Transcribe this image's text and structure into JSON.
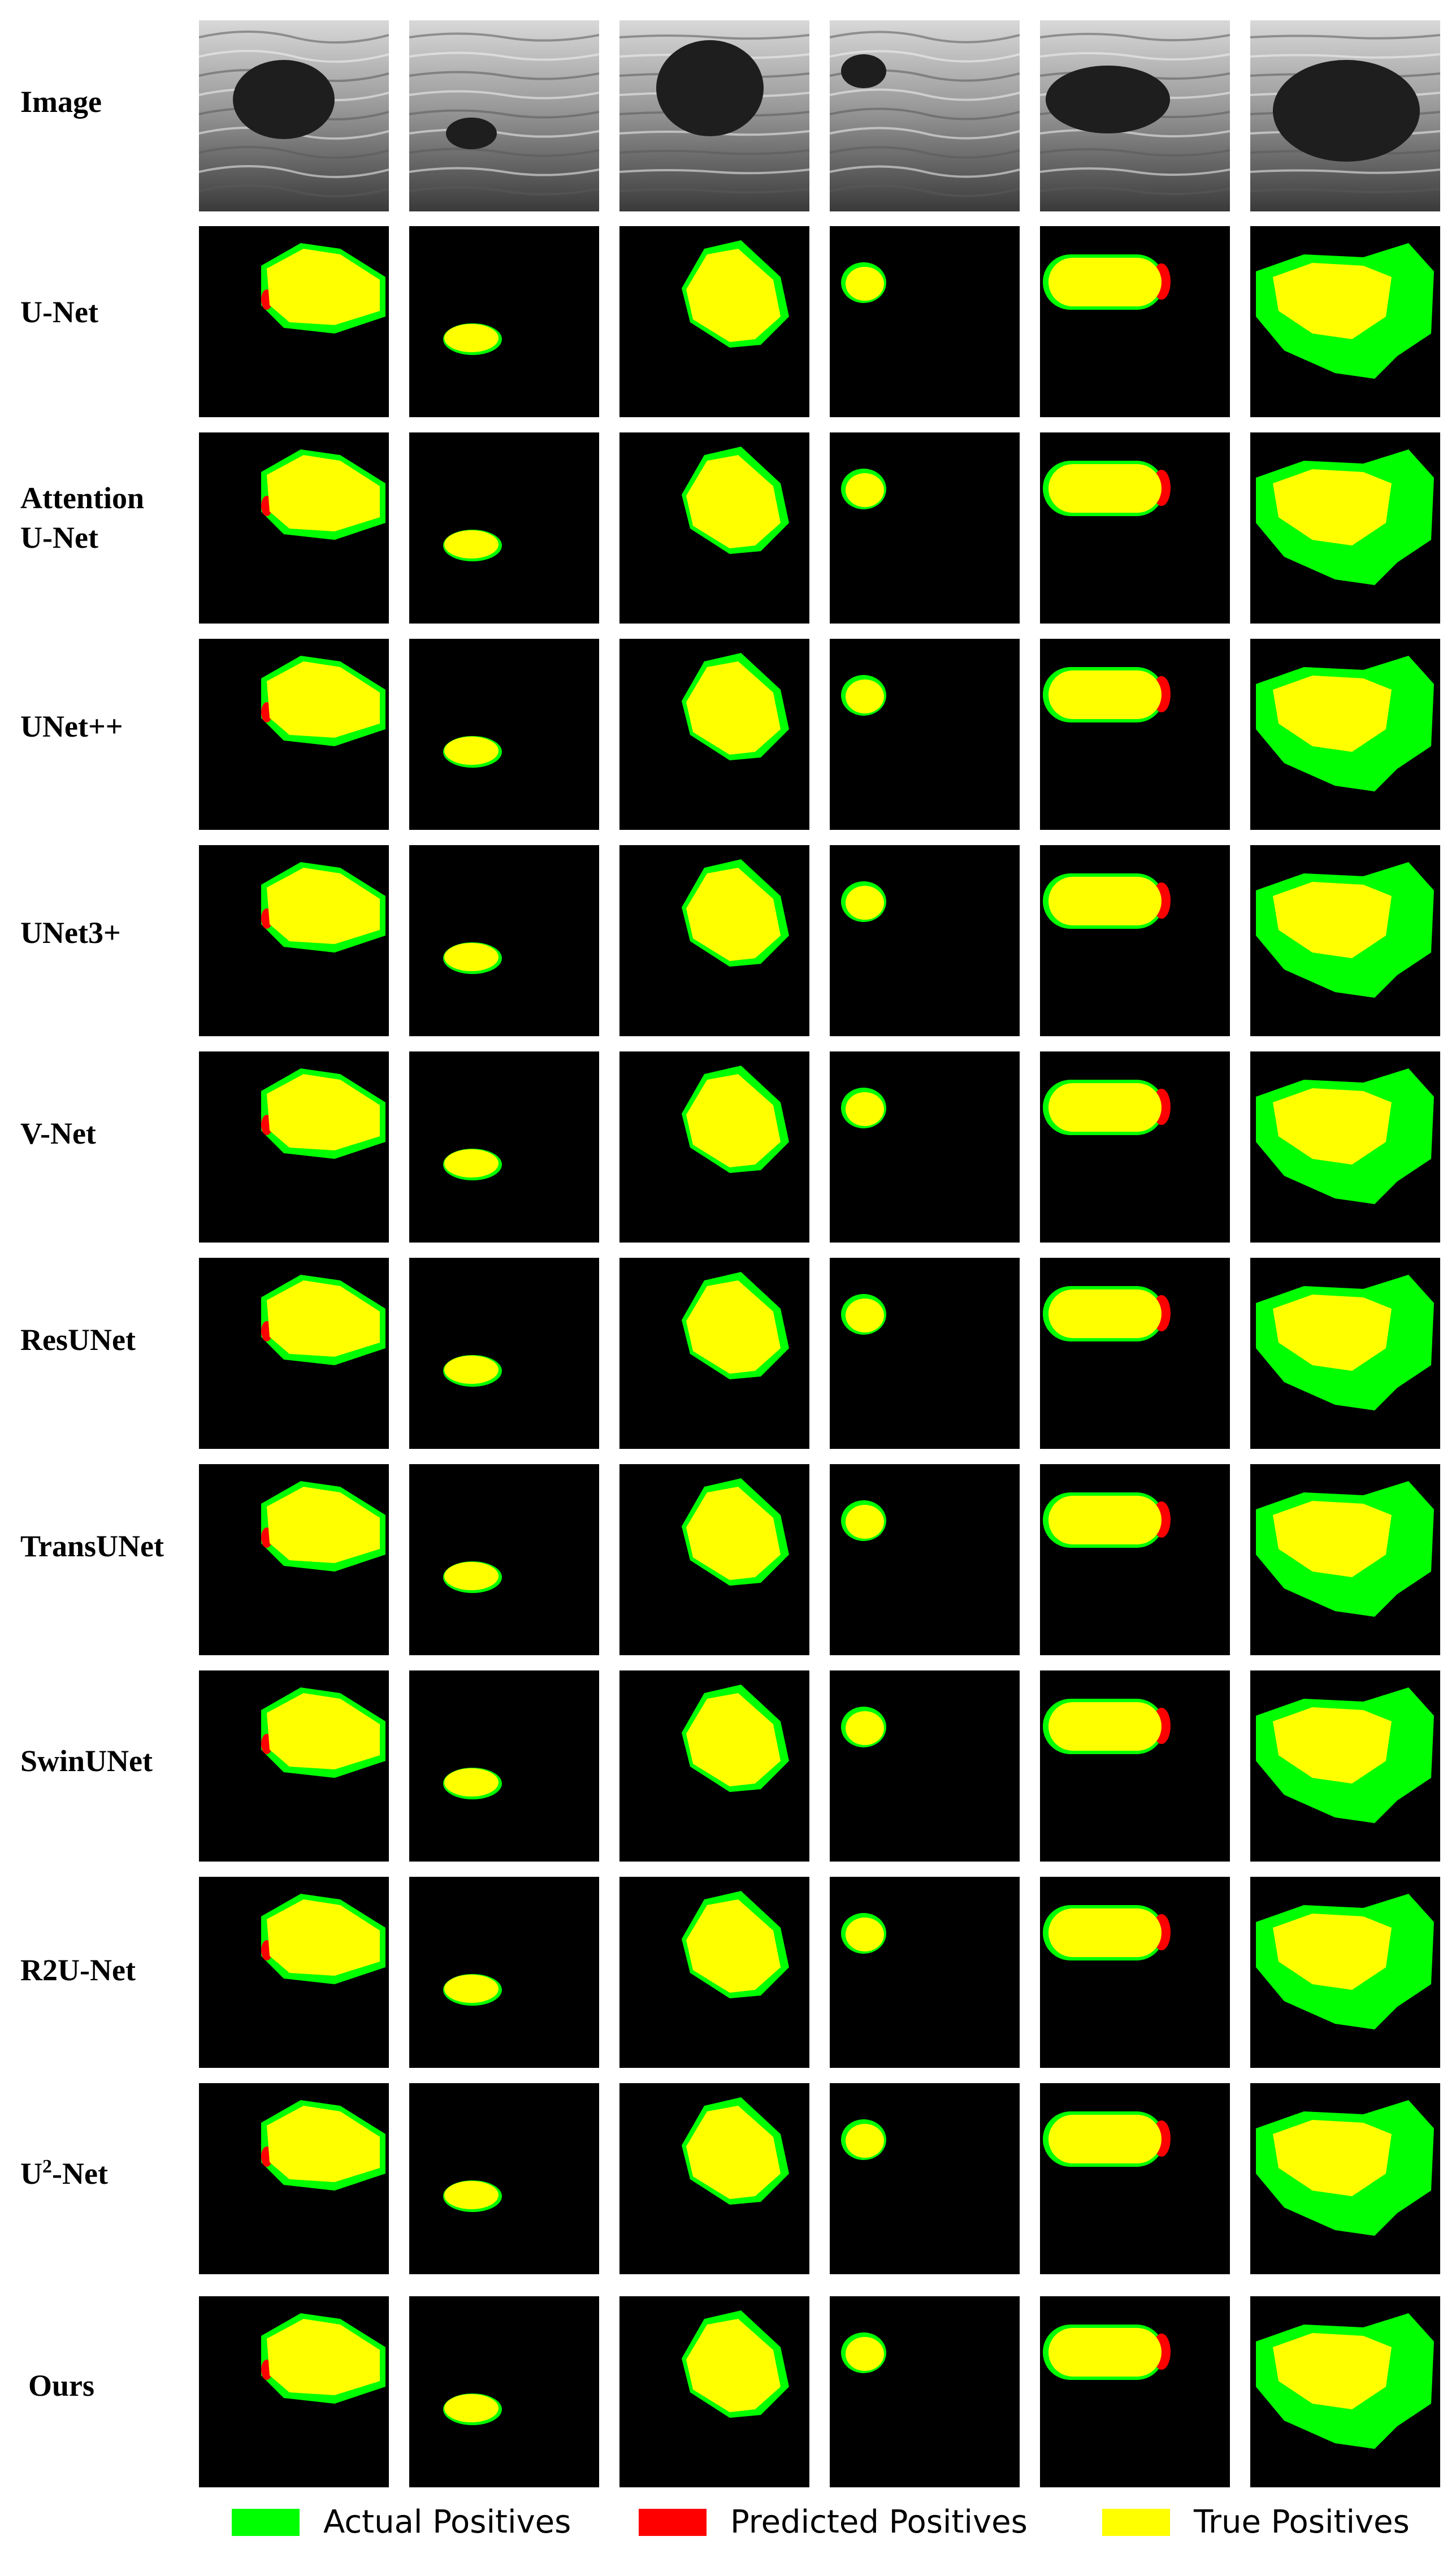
{
  "rows": [
    {
      "label": "Image",
      "type": "image"
    },
    {
      "label": "U-Net",
      "type": "mask"
    },
    {
      "label": "Attention\nU-Net",
      "type": "mask"
    },
    {
      "label": "UNet++",
      "type": "mask"
    },
    {
      "label": "UNet3+",
      "type": "mask"
    },
    {
      "label": "V-Net",
      "type": "mask"
    },
    {
      "label": "ResUNet",
      "type": "mask"
    },
    {
      "label": "TransUNet",
      "type": "mask"
    },
    {
      "label": "SwinUNet",
      "type": "mask"
    },
    {
      "label": "R2U-Net",
      "type": "mask"
    },
    {
      "label": "U2-Net",
      "label_base": "U",
      "label_sup": "2",
      "label_rest": "-Net",
      "type": "mask"
    },
    {
      "label": "Ours",
      "type": "mask"
    }
  ],
  "legend": [
    {
      "label": "Actual Positives",
      "color": "#00ff00"
    },
    {
      "label": "Predicted Positives",
      "color": "#ff0000"
    },
    {
      "label": "True Positives",
      "color": "#ffff00"
    }
  ],
  "colors": {
    "actual": "#00ff00",
    "predicted": "#ff0000",
    "true_positive": "#ffff00",
    "background": "#000000"
  }
}
